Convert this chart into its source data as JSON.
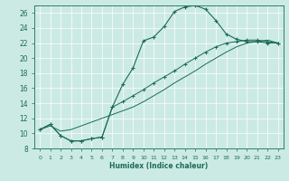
{
  "xlabel": "Humidex (Indice chaleur)",
  "xlim": [
    -0.5,
    23.5
  ],
  "ylim": [
    8,
    27
  ],
  "xticks": [
    0,
    1,
    2,
    3,
    4,
    5,
    6,
    7,
    8,
    9,
    10,
    11,
    12,
    13,
    14,
    15,
    16,
    17,
    18,
    19,
    20,
    21,
    22,
    23
  ],
  "yticks": [
    8,
    10,
    12,
    14,
    16,
    18,
    20,
    22,
    24,
    26
  ],
  "bg_color": "#cceae4",
  "line_color": "#1a6b5a",
  "grid_major_color": "#b0d8d0",
  "grid_minor_color": "#d8f0ea",
  "curve1_x": [
    0,
    1,
    2,
    3,
    4,
    5,
    6,
    7,
    8,
    9,
    10,
    11,
    12,
    13,
    14,
    15,
    16,
    17,
    18,
    19,
    20,
    21,
    22,
    23
  ],
  "curve1_y": [
    10.5,
    11.2,
    9.7,
    9.0,
    9.0,
    9.3,
    9.5,
    13.5,
    16.5,
    18.7,
    22.3,
    22.8,
    24.2,
    26.2,
    26.8,
    27.0,
    26.5,
    25.0,
    23.2,
    22.5,
    22.2,
    22.2,
    22.0,
    22.0
  ],
  "curve2_x": [
    0,
    1,
    2,
    3,
    4,
    5,
    6,
    7,
    8,
    9,
    10,
    11,
    12,
    13,
    14,
    15,
    16,
    17,
    18,
    19,
    20,
    21,
    22,
    23
  ],
  "curve2_y": [
    10.5,
    11.2,
    9.7,
    9.0,
    9.0,
    9.3,
    9.5,
    13.5,
    14.2,
    15.0,
    15.8,
    16.7,
    17.5,
    18.3,
    19.2,
    20.0,
    20.8,
    21.5,
    22.0,
    22.2,
    22.4,
    22.4,
    22.2,
    22.0
  ],
  "curve3_x": [
    0,
    1,
    2,
    3,
    4,
    5,
    6,
    7,
    8,
    9,
    10,
    11,
    12,
    13,
    14,
    15,
    16,
    17,
    18,
    19,
    20,
    21,
    22,
    23
  ],
  "curve3_y": [
    10.5,
    11.0,
    10.3,
    10.5,
    11.0,
    11.5,
    12.0,
    12.5,
    13.0,
    13.5,
    14.2,
    15.0,
    15.8,
    16.7,
    17.5,
    18.3,
    19.2,
    20.0,
    20.8,
    21.5,
    22.0,
    22.2,
    22.4,
    22.0
  ]
}
